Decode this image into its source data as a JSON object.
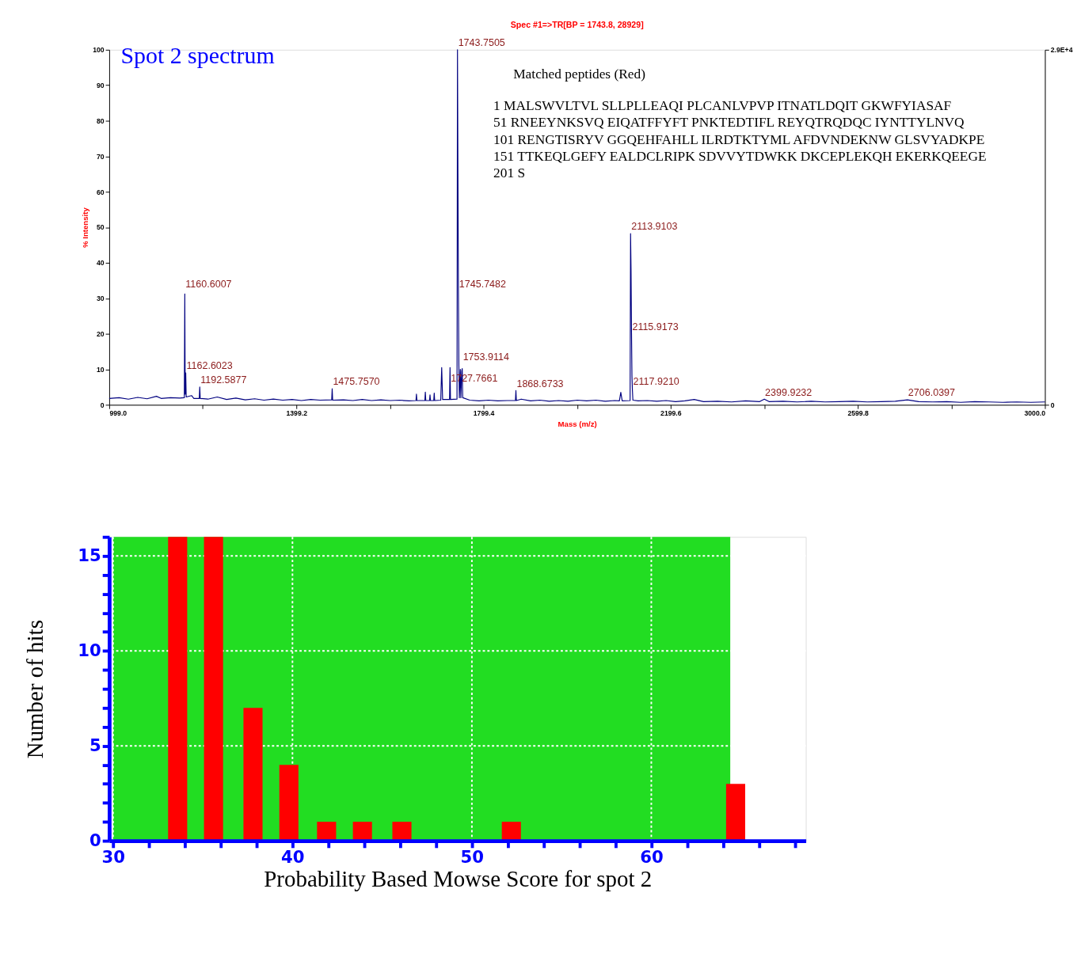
{
  "chart_data": [
    {
      "type": "line",
      "title": "Spec #1=>TR[BP = 1743.8, 28929]",
      "subtitle": "Spot 2 spectrum",
      "xlabel": "Mass (m/z)",
      "ylabel": "% Intensity",
      "xlim": [
        999.0,
        3000.0
      ],
      "xticks": [
        {
          "value": 999.0,
          "label": "999.0"
        },
        {
          "value": 1199.1,
          "label": null
        },
        {
          "value": 1399.2,
          "label": "1399.2"
        },
        {
          "value": 1599.3,
          "label": null
        },
        {
          "value": 1799.4,
          "label": "1799.4"
        },
        {
          "value": 1999.5,
          "label": null
        },
        {
          "value": 2199.6,
          "label": "2199.6"
        },
        {
          "value": 2399.7,
          "label": null
        },
        {
          "value": 2599.8,
          "label": "2599.8"
        },
        {
          "value": 2799.9,
          "label": null
        },
        {
          "value": 3000.0,
          "label": "3000.0"
        }
      ],
      "ylim": [
        0,
        100
      ],
      "yticks": [
        0,
        10,
        20,
        30,
        40,
        50,
        60,
        70,
        80,
        90,
        100
      ],
      "y2lim": [
        0,
        28929
      ],
      "y2ticks": [
        0,
        {
          "value": 28929,
          "label": "2.9E+4"
        }
      ],
      "grid": false,
      "marker": "none",
      "line_style": "solid",
      "series": [
        {
          "color": "#000080",
          "x": [
            999,
            1020,
            1040,
            1060,
            1080,
            1100,
            1110,
            1130,
            1150,
            1159.6,
            1160.6,
            1161.4,
            1162.6,
            1163.6,
            1175,
            1180,
            1191.6,
            1192.6,
            1193.6,
            1210,
            1230,
            1250,
            1270,
            1290,
            1310,
            1330,
            1350,
            1370,
            1390,
            1410,
            1430,
            1450,
            1474.8,
            1475.8,
            1476.8,
            1500,
            1520,
            1540,
            1560,
            1580,
            1600,
            1620,
            1640,
            1655,
            1656,
            1657,
            1674,
            1675,
            1676,
            1684,
            1685,
            1686,
            1693,
            1694,
            1695,
            1708,
            1710,
            1712,
            1726.8,
            1727.8,
            1728.8,
            1742.75,
            1743.75,
            1744.75,
            1745.75,
            1746.75,
            1747.75,
            1749.9,
            1751,
            1752.9,
            1753.9,
            1754.9,
            1770,
            1790,
            1810,
            1830,
            1850,
            1867.7,
            1868.7,
            1869.7,
            1880,
            1900,
            1920,
            1940,
            1960,
            1980,
            2000,
            2020,
            2040,
            2060,
            2080,
            2090,
            2093,
            2096,
            2112.9,
            2113.9,
            2114.9,
            2115.9,
            2116.9,
            2117.9,
            2118.9,
            2130,
            2150,
            2170,
            2190,
            2210,
            2230,
            2250,
            2270,
            2300,
            2330,
            2360,
            2390,
            2399.9,
            2410,
            2440,
            2470,
            2500,
            2530,
            2560,
            2590,
            2620,
            2650,
            2680,
            2706.0,
            2730,
            2760,
            2790,
            2820,
            2850,
            2880,
            2910,
            2940,
            2970,
            3000
          ],
          "values": [
            1.8,
            2.0,
            1.6,
            2.1,
            1.7,
            2.4,
            1.8,
            2.0,
            1.9,
            2.0,
            31.2,
            3.0,
            9.0,
            2.2,
            2.6,
            1.8,
            1.8,
            5.0,
            1.8,
            1.6,
            2.2,
            1.5,
            1.9,
            1.4,
            1.7,
            1.3,
            1.6,
            1.3,
            1.5,
            1.2,
            1.5,
            1.3,
            1.4,
            4.5,
            1.3,
            1.4,
            1.2,
            1.5,
            1.2,
            1.4,
            1.2,
            1.3,
            1.1,
            1.2,
            3.0,
            1.2,
            1.2,
            3.6,
            1.2,
            1.2,
            2.8,
            1.2,
            1.2,
            3.3,
            1.2,
            1.3,
            10.5,
            1.5,
            1.5,
            10.5,
            1.5,
            1.6,
            100,
            65,
            32,
            11,
            2.0,
            10.0,
            2.0,
            9.5,
            10.2,
            2.0,
            1.3,
            1.1,
            1.3,
            1.1,
            1.2,
            1.2,
            4.0,
            1.2,
            1.6,
            1.1,
            1.3,
            1.0,
            1.2,
            1.0,
            1.3,
            1.1,
            1.3,
            1.0,
            1.2,
            1.1,
            3.5,
            1.1,
            1.2,
            48.2,
            38,
            20.6,
            8.0,
            4.0,
            1.3,
            1.1,
            1.2,
            1.0,
            1.2,
            0.9,
            1.1,
            1.5,
            0.9,
            1.0,
            0.8,
            1.1,
            0.9,
            1.6,
            0.9,
            1.0,
            0.8,
            1.0,
            0.8,
            0.9,
            1.0,
            0.8,
            0.9,
            1.0,
            1.4,
            0.9,
            0.8,
            0.9,
            0.7,
            0.9,
            0.8,
            0.7,
            0.8,
            0.7,
            0.8
          ]
        }
      ],
      "annotations": [
        {
          "text": "1160.6007",
          "x": 1160.6007,
          "y": 32
        },
        {
          "text": "1162.6023",
          "x": 1162.6023,
          "y": 9
        },
        {
          "text": "1192.5877",
          "x": 1192.5877,
          "y": 5
        },
        {
          "text": "1475.7570",
          "x": 1475.757,
          "y": 4.5
        },
        {
          "text": "1743.7505",
          "x": 1743.7505,
          "y": 100
        },
        {
          "text": "1745.7482",
          "x": 1745.7482,
          "y": 32
        },
        {
          "text": "1753.9114",
          "x": 1753.9114,
          "y": 11.5
        },
        {
          "text": "1727.7661",
          "x": 1727.7661,
          "y": 5.5
        },
        {
          "text": "1868.6733",
          "x": 1868.6733,
          "y": 4
        },
        {
          "text": "2113.9103",
          "x": 2113.9103,
          "y": 48.2
        },
        {
          "text": "2115.9173",
          "x": 2115.9173,
          "y": 20
        },
        {
          "text": "2117.9210",
          "x": 2117.921,
          "y": 4.5
        },
        {
          "text": "2399.9232",
          "x": 2399.9232,
          "y": 1.5
        },
        {
          "text": "2706.0397",
          "x": 2706.0397,
          "y": 1.5
        },
        "Matched peptides (Red)",
        "1 MALSWVLTVL SLLPLLEAQI PLCANLVPVP ITNATLDQIT GKWFYIASAF",
        "51 RNEEYNKSVQ EIQATFFYFT PNKTEDTIFL REYQTRQDQC IYNTTYLNVQ",
        "101 RENGTISRYV GGQEHFAHLL ILRDTKTYML AFDVNDEKNW GLSVYADKPE",
        "151 TTKEQLGEFY EALDCLRIPK SDVVYTDWKK DKCEPLEKQH EKERKQEEGE",
        "201 S"
      ]
    },
    {
      "type": "bar",
      "xlabel": "Probability Based Mowse Score for spot 2",
      "ylabel": "Number of hits",
      "x": [
        33.6,
        35.6,
        37.8,
        39.8,
        41.9,
        43.9,
        46.1,
        52.2,
        64.7
      ],
      "values": [
        16,
        16,
        7,
        4,
        1,
        1,
        1,
        1,
        3
      ],
      "color": "#ff0000",
      "xlim": [
        30,
        68.4
      ],
      "xticks": [
        30,
        {
          "value": 32,
          "label": null
        },
        {
          "value": 34,
          "label": null
        },
        {
          "value": 36,
          "label": null
        },
        {
          "value": 38,
          "label": null
        },
        40,
        {
          "value": 42,
          "label": null
        },
        {
          "value": 44,
          "label": null
        },
        {
          "value": 46,
          "label": null
        },
        {
          "value": 48,
          "label": null
        },
        50,
        {
          "value": 52,
          "label": null
        },
        {
          "value": 54,
          "label": null
        },
        {
          "value": 56,
          "label": null
        },
        {
          "value": 58,
          "label": null
        },
        60,
        {
          "value": 62,
          "label": null
        },
        {
          "value": 64,
          "label": null
        },
        {
          "value": 66,
          "label": null
        },
        {
          "value": 68,
          "label": null
        }
      ],
      "ylim": [
        0,
        16
      ],
      "yticks": [
        0,
        {
          "value": 1,
          "label": null
        },
        {
          "value": 2,
          "label": null
        },
        {
          "value": 3,
          "label": null
        },
        {
          "value": 4,
          "label": null
        },
        5,
        {
          "value": 6,
          "label": null
        },
        {
          "value": 7,
          "label": null
        },
        {
          "value": 8,
          "label": null
        },
        {
          "value": 9,
          "label": null
        },
        10,
        {
          "value": 11,
          "label": null
        },
        {
          "value": 12,
          "label": null
        },
        {
          "value": 13,
          "label": null
        },
        {
          "value": 14,
          "label": null
        },
        15,
        {
          "value": 16,
          "label": null
        }
      ],
      "bands": [
        {
          "axis": "x",
          "from": 30,
          "to": 64.4,
          "color": "#22dd22"
        }
      ],
      "grid": true
    }
  ]
}
